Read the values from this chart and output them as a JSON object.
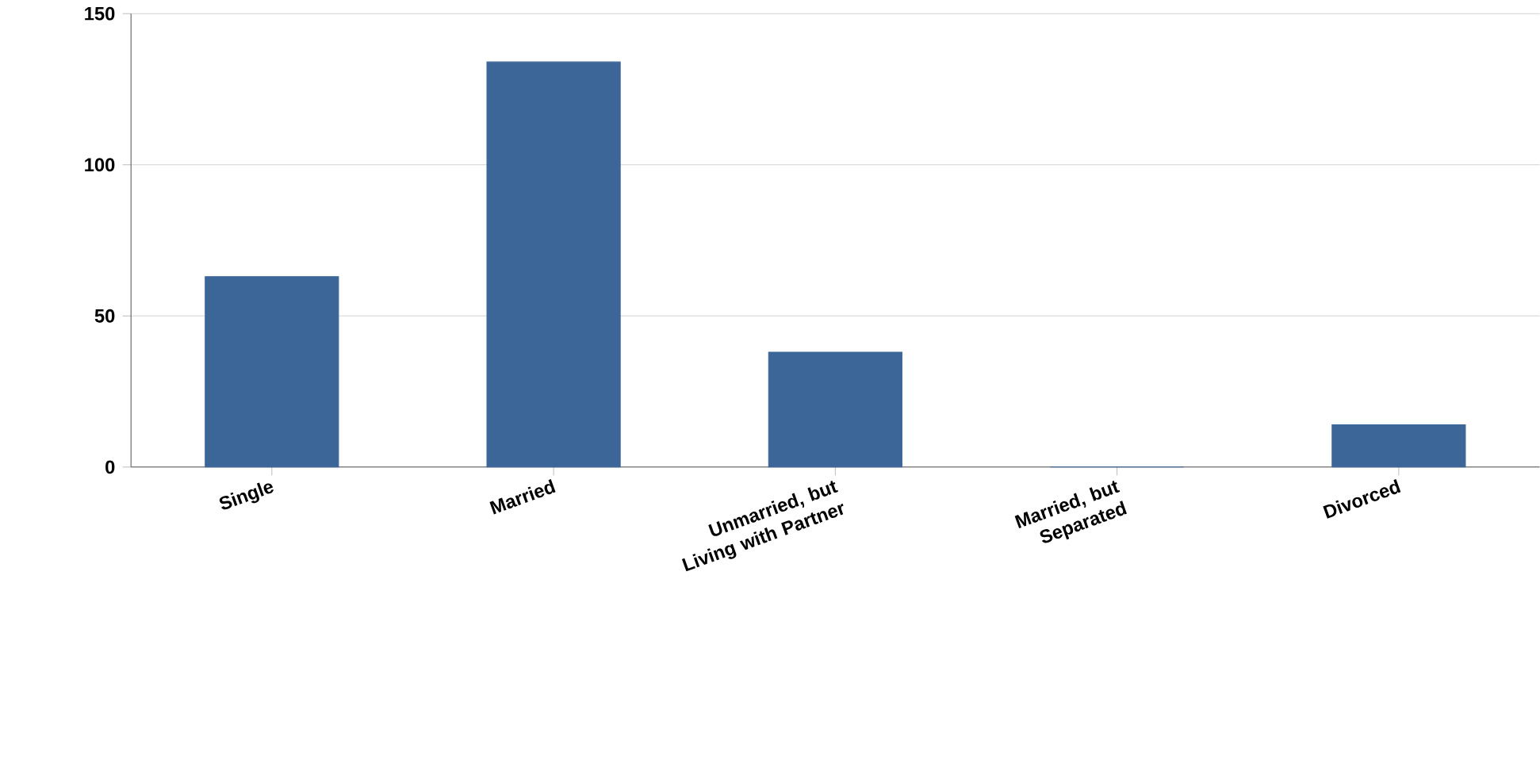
{
  "chart_data": {
    "type": "bar",
    "categories": [
      "Single",
      "Married",
      "Unmarried, but Living with Partner",
      "Married, but Separated",
      "Divorced"
    ],
    "values": [
      63,
      134,
      38,
      0,
      14
    ],
    "color": "#3d6698",
    "ylim": [
      0,
      150
    ],
    "yticks": [
      0,
      50,
      100,
      150
    ],
    "grid": "y"
  }
}
